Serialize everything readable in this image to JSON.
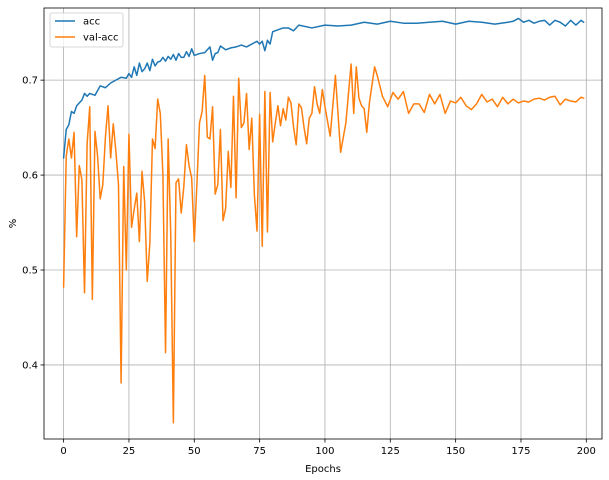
{
  "chart_data": {
    "type": "line",
    "xlabel": "Epochs",
    "ylabel": "%",
    "xlim": [
      -7.5,
      206
    ],
    "ylim": [
      0.322,
      0.776
    ],
    "xticks": [
      0,
      25,
      50,
      75,
      100,
      125,
      150,
      175,
      200
    ],
    "yticks": [
      0.4,
      0.5,
      0.6,
      0.7
    ],
    "ytick_labels": [
      "0.4",
      "0.5",
      "0.6",
      "0.7"
    ],
    "grid": true,
    "legend_position": "top-left",
    "series": [
      {
        "name": "acc",
        "color": "#1f77b4",
        "x": [
          0,
          1,
          2,
          3,
          4,
          5,
          6,
          7,
          8,
          9,
          10,
          12,
          14,
          16,
          18,
          20,
          22,
          24,
          25,
          26,
          27,
          28,
          29,
          30,
          31,
          32,
          33,
          34,
          35,
          36,
          37,
          38,
          39,
          40,
          41,
          42,
          43,
          44,
          45,
          46,
          47,
          48,
          49,
          50,
          52,
          54,
          56,
          57,
          58,
          59,
          60,
          62,
          64,
          66,
          68,
          70,
          72,
          74,
          75,
          76,
          77,
          78,
          79,
          80,
          82,
          84,
          86,
          88,
          90,
          95,
          100,
          105,
          110,
          115,
          120,
          125,
          130,
          135,
          140,
          145,
          150,
          155,
          160,
          165,
          170,
          172,
          174,
          176,
          178,
          180,
          182,
          184,
          186,
          188,
          190,
          192,
          194,
          196,
          198,
          199
        ],
        "values": [
          0.618,
          0.648,
          0.653,
          0.667,
          0.665,
          0.673,
          0.676,
          0.679,
          0.686,
          0.683,
          0.686,
          0.684,
          0.694,
          0.692,
          0.697,
          0.7,
          0.703,
          0.702,
          0.707,
          0.703,
          0.714,
          0.705,
          0.718,
          0.709,
          0.712,
          0.718,
          0.71,
          0.722,
          0.715,
          0.719,
          0.72,
          0.724,
          0.72,
          0.725,
          0.722,
          0.727,
          0.721,
          0.728,
          0.724,
          0.724,
          0.73,
          0.725,
          0.733,
          0.726,
          0.728,
          0.729,
          0.735,
          0.721,
          0.728,
          0.729,
          0.736,
          0.732,
          0.734,
          0.735,
          0.737,
          0.735,
          0.738,
          0.741,
          0.738,
          0.741,
          0.731,
          0.742,
          0.738,
          0.751,
          0.753,
          0.755,
          0.755,
          0.752,
          0.758,
          0.755,
          0.758,
          0.757,
          0.758,
          0.761,
          0.759,
          0.762,
          0.76,
          0.76,
          0.761,
          0.762,
          0.759,
          0.762,
          0.761,
          0.759,
          0.761,
          0.762,
          0.765,
          0.761,
          0.763,
          0.76,
          0.762,
          0.763,
          0.758,
          0.763,
          0.761,
          0.757,
          0.763,
          0.758,
          0.763,
          0.761
        ]
      },
      {
        "name": "val-acc",
        "color": "#ff7f0e",
        "x": [
          0,
          1,
          2,
          3,
          4,
          5,
          6,
          7,
          8,
          9,
          10,
          11,
          12,
          13,
          14,
          15,
          16,
          17,
          18,
          19,
          20,
          21,
          22,
          23,
          24,
          25,
          26,
          27,
          28,
          29,
          30,
          31,
          32,
          33,
          34,
          35,
          36,
          37,
          38,
          39,
          40,
          41,
          42,
          43,
          44,
          45,
          46,
          47,
          48,
          49,
          50,
          51,
          52,
          53,
          54,
          55,
          56,
          57,
          58,
          59,
          60,
          61,
          62,
          63,
          64,
          65,
          66,
          67,
          68,
          69,
          70,
          71,
          72,
          73,
          74,
          75,
          76,
          77,
          78,
          79,
          80,
          81,
          82,
          83,
          84,
          85,
          86,
          87,
          88,
          89,
          90,
          91,
          92,
          93,
          94,
          95,
          96,
          97,
          98,
          99,
          100,
          102,
          104,
          106,
          108,
          110,
          111,
          112,
          113,
          114,
          115,
          116,
          117,
          118,
          119,
          120,
          122,
          124,
          126,
          128,
          130,
          132,
          134,
          136,
          138,
          140,
          142,
          144,
          146,
          148,
          150,
          152,
          154,
          156,
          158,
          160,
          162,
          164,
          166,
          168,
          170,
          172,
          174,
          176,
          178,
          180,
          182,
          184,
          186,
          188,
          190,
          192,
          194,
          196,
          198,
          199
        ],
        "values": [
          0.482,
          0.62,
          0.638,
          0.618,
          0.645,
          0.535,
          0.61,
          0.595,
          0.476,
          0.633,
          0.672,
          0.469,
          0.646,
          0.62,
          0.575,
          0.59,
          0.64,
          0.673,
          0.618,
          0.654,
          0.625,
          0.59,
          0.381,
          0.609,
          0.5,
          0.643,
          0.545,
          0.564,
          0.581,
          0.53,
          0.604,
          0.572,
          0.488,
          0.528,
          0.638,
          0.628,
          0.68,
          0.665,
          0.6,
          0.413,
          0.638,
          0.537,
          0.339,
          0.592,
          0.596,
          0.56,
          0.588,
          0.632,
          0.61,
          0.597,
          0.53,
          0.59,
          0.655,
          0.667,
          0.705,
          0.64,
          0.638,
          0.672,
          0.58,
          0.59,
          0.648,
          0.552,
          0.565,
          0.625,
          0.587,
          0.683,
          0.576,
          0.702,
          0.65,
          0.655,
          0.686,
          0.627,
          0.66,
          0.579,
          0.541,
          0.664,
          0.525,
          0.688,
          0.54,
          0.687,
          0.635,
          0.655,
          0.673,
          0.652,
          0.67,
          0.658,
          0.682,
          0.676,
          0.65,
          0.632,
          0.675,
          0.671,
          0.65,
          0.633,
          0.66,
          0.665,
          0.693,
          0.675,
          0.665,
          0.69,
          0.672,
          0.641,
          0.705,
          0.624,
          0.655,
          0.717,
          0.665,
          0.714,
          0.681,
          0.673,
          0.67,
          0.645,
          0.676,
          0.695,
          0.714,
          0.705,
          0.683,
          0.672,
          0.687,
          0.68,
          0.688,
          0.665,
          0.675,
          0.675,
          0.666,
          0.685,
          0.675,
          0.685,
          0.665,
          0.678,
          0.676,
          0.682,
          0.673,
          0.669,
          0.675,
          0.685,
          0.677,
          0.68,
          0.672,
          0.682,
          0.675,
          0.68,
          0.676,
          0.678,
          0.677,
          0.68,
          0.681,
          0.679,
          0.682,
          0.683,
          0.674,
          0.68,
          0.678,
          0.677,
          0.682,
          0.681
        ]
      }
    ]
  }
}
